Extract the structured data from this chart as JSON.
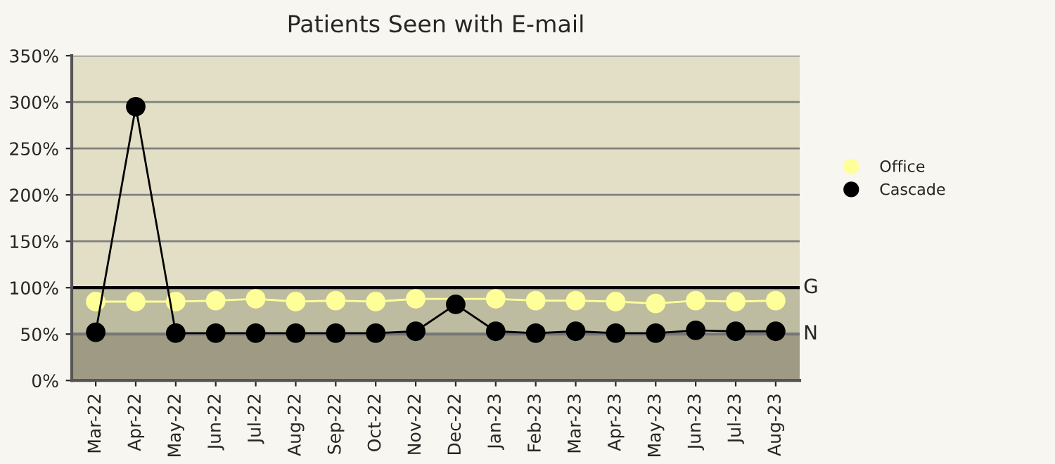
{
  "chart_data": {
    "type": "line",
    "title": "Patients Seen with E-mail",
    "categories": [
      "Mar-22",
      "Apr-22",
      "May-22",
      "Jun-22",
      "Jul-22",
      "Aug-22",
      "Sep-22",
      "Oct-22",
      "Nov-22",
      "Dec-22",
      "Jan-23",
      "Feb-23",
      "Mar-23",
      "Apr-23",
      "May-23",
      "Jun-23",
      "Jul-23",
      "Aug-23"
    ],
    "series": [
      {
        "name": "Office",
        "color": "#ffff99",
        "values": [
          85,
          85,
          85,
          86,
          88,
          85,
          86,
          85,
          88,
          null,
          88,
          86,
          86,
          85,
          83,
          86,
          85,
          86
        ]
      },
      {
        "name": "Cascade",
        "color": "#000000",
        "values": [
          52,
          295,
          51,
          51,
          51,
          51,
          51,
          51,
          53,
          82,
          53,
          51,
          53,
          51,
          51,
          54,
          53,
          53
        ]
      }
    ],
    "ylim": [
      0,
      350
    ],
    "yticks": [
      {
        "value": 0,
        "label": "0%"
      },
      {
        "value": 50,
        "label": "50%"
      },
      {
        "value": 100,
        "label": "100%"
      },
      {
        "value": 150,
        "label": "150%"
      },
      {
        "value": 200,
        "label": "200%"
      },
      {
        "value": 250,
        "label": "250%"
      },
      {
        "value": 300,
        "label": "300%"
      },
      {
        "value": 350,
        "label": "350%"
      }
    ],
    "bands": [
      {
        "axis": "y",
        "from": 0,
        "to": 50,
        "color": "#9e9a84"
      },
      {
        "axis": "y",
        "from": 50,
        "to": 100,
        "color": "#bdbca0"
      },
      {
        "axis": "y",
        "from": 100,
        "to": 350,
        "color": "#e2dfc6"
      }
    ],
    "ref_lines": [
      {
        "axis": "y",
        "value": 100,
        "label": "G",
        "color": "#000000"
      },
      {
        "axis": "y",
        "value": 50,
        "label": "N",
        "color": "#777777"
      }
    ],
    "grid": "y",
    "legend": "right",
    "marker": "circle",
    "line_style": "solid"
  }
}
